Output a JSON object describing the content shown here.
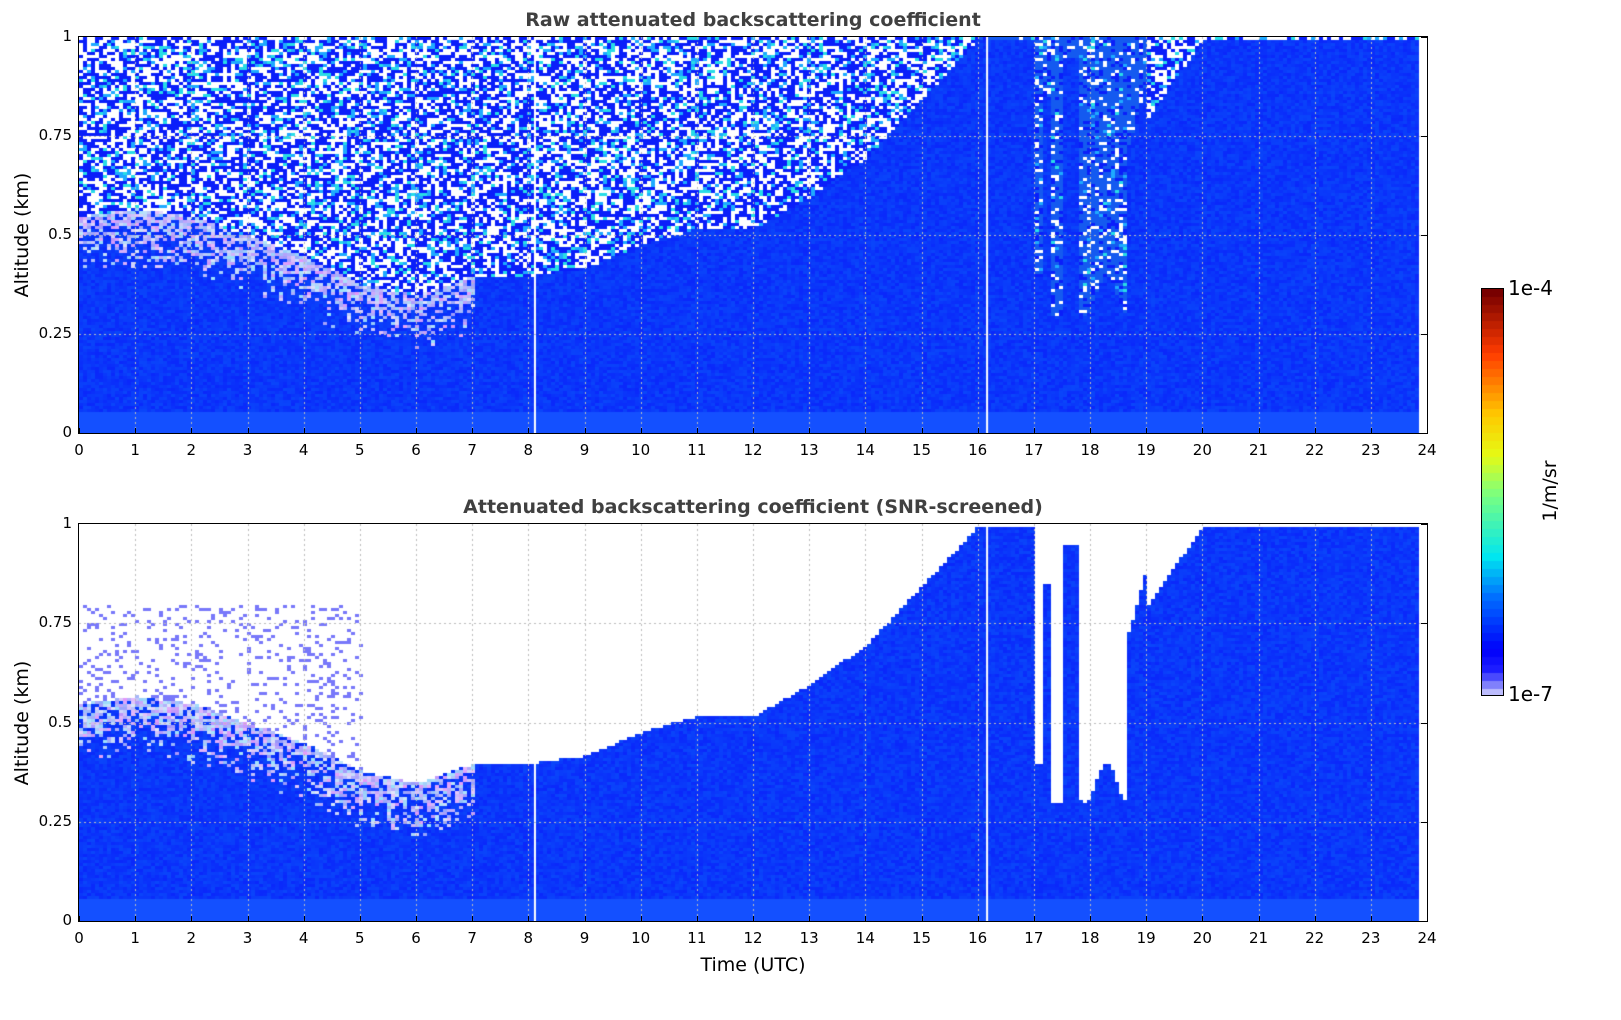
{
  "chart_data": [
    {
      "type": "heatmap",
      "title": "Raw attenuated backscattering coefficient",
      "xlabel": "",
      "ylabel": "Altitude (km)",
      "xlim": [
        0,
        24
      ],
      "ylim": [
        0,
        1
      ],
      "xticks": [
        "0",
        "1",
        "2",
        "3",
        "4",
        "5",
        "6",
        "7",
        "8",
        "9",
        "10",
        "11",
        "12",
        "13",
        "14",
        "15",
        "16",
        "17",
        "18",
        "19",
        "20",
        "21",
        "22",
        "23",
        "24"
      ],
      "yticks": [
        "0",
        "0.25",
        "0.5",
        "0.75",
        "1"
      ],
      "grid": true,
      "data_end_hour": 23.8,
      "data_gaps_hours": [
        8.1,
        16.15
      ]
    },
    {
      "type": "heatmap",
      "title": "Attenuated backscattering coefficient (SNR-screened)",
      "xlabel": "Time (UTC)",
      "ylabel": "Altitude (km)",
      "xlim": [
        0,
        24
      ],
      "ylim": [
        0,
        1
      ],
      "xticks": [
        "0",
        "1",
        "2",
        "3",
        "4",
        "5",
        "6",
        "7",
        "8",
        "9",
        "10",
        "11",
        "12",
        "13",
        "14",
        "15",
        "16",
        "17",
        "18",
        "19",
        "20",
        "21",
        "22",
        "23",
        "24"
      ],
      "yticks": [
        "0",
        "0.25",
        "0.5",
        "0.75",
        "1"
      ],
      "grid": true,
      "data_end_hour": 23.8,
      "signal_top_km_hourly": {
        "hours": [
          0,
          1,
          2,
          3,
          4,
          5,
          6,
          7,
          8,
          9,
          10,
          11,
          12,
          13,
          14,
          15,
          16,
          17,
          18,
          19,
          20,
          21,
          22,
          23,
          23.8
        ],
        "top": [
          0.55,
          0.57,
          0.55,
          0.5,
          0.45,
          0.38,
          0.35,
          0.4,
          0.4,
          0.42,
          0.48,
          0.52,
          0.52,
          0.6,
          0.7,
          0.85,
          1,
          1,
          0.35,
          0.8,
          1,
          1,
          1,
          1,
          1
        ]
      }
    }
  ],
  "colorbar": {
    "label": "1/m/sr",
    "min_label": "1e-7",
    "max_label": "1e-4",
    "vmin": 1e-07,
    "vmax": 0.0001,
    "scale": "log",
    "colormap": "jet with light-purple low end"
  }
}
